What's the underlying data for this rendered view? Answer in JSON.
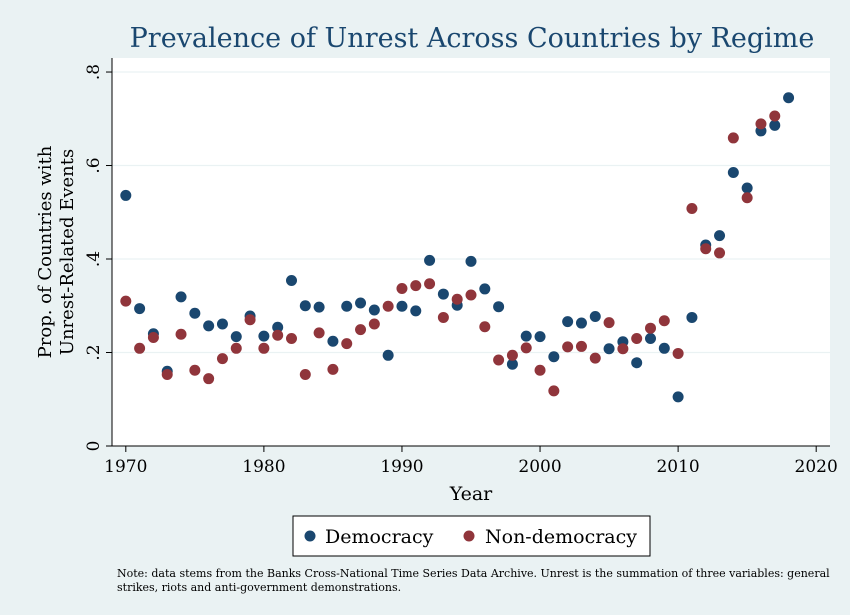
{
  "chart_data": {
    "type": "scatter",
    "title": "Prevalence of Unrest Across Countries by Regime",
    "xlabel": "Year",
    "ylabel_lines": [
      "Prop. of Countries with",
      "Unrest-Related Events"
    ],
    "xlim": [
      1969,
      2021
    ],
    "ylim": [
      0,
      0.83
    ],
    "x_ticks": [
      1970,
      1980,
      1990,
      2000,
      2010,
      2020
    ],
    "x_tick_labels": [
      "1970",
      "1980",
      "1990",
      "2000",
      "2010",
      "2020"
    ],
    "y_ticks": [
      0,
      0.2,
      0.4,
      0.6,
      0.8
    ],
    "y_tick_labels": [
      "0",
      ".2",
      ".4",
      ".6",
      ".8"
    ],
    "grid": true,
    "legend_position": "bottom",
    "series": [
      {
        "name": "Democracy",
        "color": "#1a476f",
        "x": [
          1970,
          1971,
          1972,
          1973,
          1974,
          1975,
          1976,
          1977,
          1978,
          1979,
          1980,
          1981,
          1982,
          1983,
          1984,
          1985,
          1986,
          1987,
          1988,
          1989,
          1990,
          1991,
          1992,
          1993,
          1994,
          1995,
          1996,
          1997,
          1998,
          1999,
          2000,
          2001,
          2002,
          2003,
          2004,
          2005,
          2006,
          2007,
          2008,
          2009,
          2010,
          2011,
          2012,
          2013,
          2014,
          2015,
          2016,
          2017,
          2018
        ],
        "y": [
          0.536,
          0.294,
          0.24,
          0.16,
          0.319,
          0.284,
          0.257,
          0.261,
          0.234,
          0.278,
          0.235,
          0.254,
          0.354,
          0.3,
          0.297,
          0.224,
          0.299,
          0.306,
          0.291,
          0.194,
          0.299,
          0.289,
          0.397,
          0.325,
          0.301,
          0.395,
          0.336,
          0.298,
          0.175,
          0.235,
          0.234,
          0.191,
          0.266,
          0.263,
          0.277,
          0.208,
          0.223,
          0.178,
          0.23,
          0.209,
          0.105,
          0.275,
          0.43,
          0.45,
          0.585,
          0.552,
          0.674,
          0.686,
          0.745
        ]
      },
      {
        "name": "Non-democracy",
        "color": "#90353b",
        "x": [
          1970,
          1971,
          1972,
          1973,
          1974,
          1975,
          1976,
          1977,
          1978,
          1979,
          1980,
          1981,
          1982,
          1983,
          1984,
          1985,
          1986,
          1987,
          1988,
          1989,
          1990,
          1991,
          1992,
          1993,
          1994,
          1995,
          1996,
          1997,
          1998,
          1999,
          2000,
          2001,
          2002,
          2003,
          2004,
          2005,
          2006,
          2007,
          2008,
          2009,
          2010,
          2011,
          2012,
          2013,
          2014,
          2015,
          2016,
          2017
        ],
        "y": [
          0.31,
          0.209,
          0.232,
          0.153,
          0.239,
          0.162,
          0.144,
          0.187,
          0.209,
          0.27,
          0.209,
          0.237,
          0.23,
          0.153,
          0.242,
          0.164,
          0.219,
          0.249,
          0.261,
          0.299,
          0.337,
          0.343,
          0.347,
          0.275,
          0.314,
          0.323,
          0.255,
          0.184,
          0.194,
          0.21,
          0.162,
          0.118,
          0.212,
          0.213,
          0.188,
          0.264,
          0.208,
          0.23,
          0.252,
          0.268,
          0.198,
          0.508,
          0.422,
          0.413,
          0.659,
          0.531,
          0.689,
          0.706
        ]
      }
    ]
  },
  "note": "Note: data stems from the Banks Cross-National Time Series Data Archive. Unrest is the summation of three variables: general strikes, riots and anti-government demonstrations."
}
